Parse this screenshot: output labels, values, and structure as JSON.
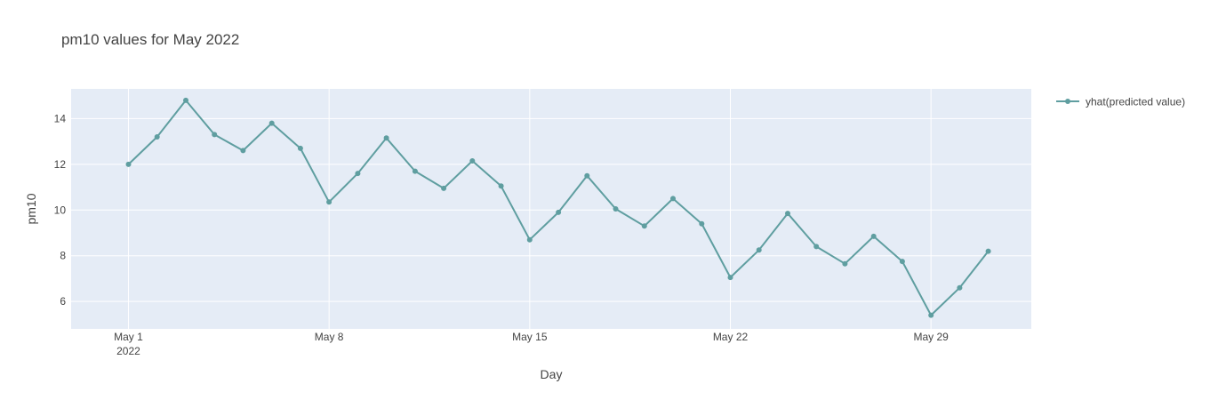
{
  "chart_data": {
    "type": "line",
    "title": "pm10 values for May 2022",
    "xlabel": "Day",
    "ylabel": "pm10",
    "x_range": [
      "2022-04-29T00:00",
      "2022-06-01T12:00"
    ],
    "ylim": [
      4.8,
      15.3
    ],
    "y_ticks": [
      6,
      8,
      10,
      12,
      14
    ],
    "x_ticks": [
      {
        "date": "2022-05-01",
        "label": "May 1",
        "sublabel": "2022"
      },
      {
        "date": "2022-05-08",
        "label": "May 8",
        "sublabel": ""
      },
      {
        "date": "2022-05-15",
        "label": "May 15",
        "sublabel": ""
      },
      {
        "date": "2022-05-22",
        "label": "May 22",
        "sublabel": ""
      },
      {
        "date": "2022-05-29",
        "label": "May 29",
        "sublabel": ""
      }
    ],
    "grid": true,
    "legend_position": "top-right",
    "series": [
      {
        "name": "yhat(predicted value)",
        "color": "#5f9ea0",
        "x": [
          "2022-05-01",
          "2022-05-02",
          "2022-05-03",
          "2022-05-04",
          "2022-05-05",
          "2022-05-06",
          "2022-05-07",
          "2022-05-08",
          "2022-05-09",
          "2022-05-10",
          "2022-05-11",
          "2022-05-12",
          "2022-05-13",
          "2022-05-14",
          "2022-05-15",
          "2022-05-16",
          "2022-05-17",
          "2022-05-18",
          "2022-05-19",
          "2022-05-20",
          "2022-05-21",
          "2022-05-22",
          "2022-05-23",
          "2022-05-24",
          "2022-05-25",
          "2022-05-26",
          "2022-05-27",
          "2022-05-28",
          "2022-05-29",
          "2022-05-30",
          "2022-05-31"
        ],
        "y": [
          12.0,
          13.2,
          14.8,
          13.3,
          12.6,
          13.8,
          12.7,
          10.35,
          11.6,
          13.15,
          11.7,
          10.95,
          12.15,
          11.05,
          8.7,
          9.9,
          11.5,
          10.05,
          9.3,
          10.5,
          9.4,
          7.05,
          8.25,
          9.85,
          8.4,
          7.65,
          8.85,
          7.75,
          5.4,
          6.6,
          8.2
        ]
      }
    ]
  }
}
